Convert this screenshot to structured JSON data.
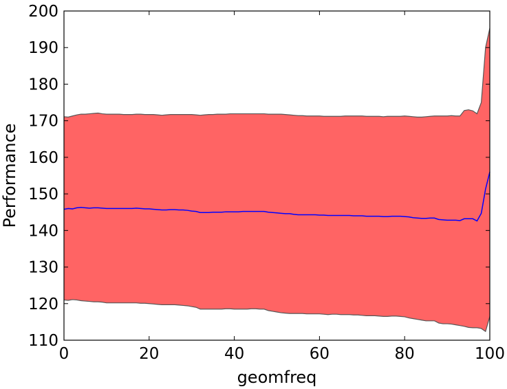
{
  "chart_data": {
    "type": "area",
    "title": "",
    "xlabel": "geomfreq",
    "ylabel": "Performance",
    "xlim": [
      0,
      100
    ],
    "ylim": [
      110,
      200
    ],
    "xticks": [
      0,
      20,
      40,
      60,
      80,
      100
    ],
    "yticks": [
      110,
      120,
      130,
      140,
      150,
      160,
      170,
      180,
      190,
      200
    ],
    "grid": false,
    "colors": {
      "band_fill": "#ff6464",
      "band_edge": "#555555",
      "mean_line": "#0000ff",
      "axes": "#000000"
    },
    "x": [
      0,
      1,
      2,
      3,
      4,
      5,
      6,
      7,
      8,
      9,
      10,
      11,
      12,
      13,
      14,
      15,
      16,
      17,
      18,
      19,
      20,
      21,
      22,
      23,
      24,
      25,
      26,
      27,
      28,
      29,
      30,
      31,
      32,
      33,
      34,
      35,
      36,
      37,
      38,
      39,
      40,
      41,
      42,
      43,
      44,
      45,
      46,
      47,
      48,
      49,
      50,
      51,
      52,
      53,
      54,
      55,
      56,
      57,
      58,
      59,
      60,
      61,
      62,
      63,
      64,
      65,
      66,
      67,
      68,
      69,
      70,
      71,
      72,
      73,
      74,
      75,
      76,
      77,
      78,
      79,
      80,
      81,
      82,
      83,
      84,
      85,
      86,
      87,
      88,
      89,
      90,
      91,
      92,
      93,
      94,
      95,
      96,
      97,
      98,
      99,
      100
    ],
    "series": [
      {
        "role": "mean",
        "values": [
          145.8,
          146.0,
          145.9,
          146.2,
          146.3,
          146.2,
          146.1,
          146.2,
          146.2,
          146.1,
          146.0,
          146.0,
          146.0,
          146.0,
          146.0,
          146.0,
          146.0,
          146.1,
          146.0,
          145.9,
          145.9,
          145.8,
          145.7,
          145.6,
          145.6,
          145.7,
          145.7,
          145.6,
          145.6,
          145.5,
          145.3,
          145.2,
          144.9,
          144.9,
          144.9,
          145.0,
          145.0,
          145.0,
          145.1,
          145.1,
          145.1,
          145.1,
          145.2,
          145.2,
          145.2,
          145.2,
          145.2,
          145.2,
          145.0,
          144.9,
          144.8,
          144.7,
          144.6,
          144.6,
          144.4,
          144.3,
          144.3,
          144.3,
          144.3,
          144.3,
          144.2,
          144.2,
          144.1,
          144.1,
          144.1,
          144.1,
          144.1,
          144.1,
          144.0,
          144.0,
          144.0,
          143.9,
          143.9,
          143.9,
          143.9,
          143.8,
          143.8,
          143.9,
          143.9,
          143.9,
          143.8,
          143.7,
          143.5,
          143.4,
          143.3,
          143.3,
          143.4,
          143.4,
          143.0,
          142.9,
          142.8,
          142.8,
          142.8,
          142.7,
          143.2,
          143.2,
          143.2,
          142.6,
          144.7,
          151.3,
          156.0
        ]
      },
      {
        "role": "upper",
        "values": [
          171.1,
          171.0,
          171.3,
          171.6,
          171.8,
          171.8,
          171.9,
          172.0,
          172.1,
          171.9,
          171.8,
          171.8,
          171.8,
          171.8,
          171.7,
          171.7,
          171.7,
          171.8,
          171.8,
          171.7,
          171.7,
          171.7,
          171.6,
          171.5,
          171.6,
          171.7,
          171.7,
          171.7,
          171.7,
          171.7,
          171.7,
          171.6,
          171.5,
          171.6,
          171.7,
          171.7,
          171.8,
          171.8,
          171.8,
          171.9,
          171.9,
          171.9,
          171.9,
          171.9,
          171.9,
          171.9,
          171.9,
          171.9,
          171.8,
          171.8,
          171.8,
          171.8,
          171.7,
          171.6,
          171.5,
          171.4,
          171.4,
          171.3,
          171.3,
          171.3,
          171.3,
          171.2,
          171.2,
          171.2,
          171.2,
          171.2,
          171.3,
          171.3,
          171.3,
          171.3,
          171.3,
          171.2,
          171.2,
          171.2,
          171.2,
          171.1,
          171.2,
          171.2,
          171.2,
          171.2,
          171.3,
          171.2,
          171.1,
          171.0,
          171.0,
          171.1,
          171.2,
          171.3,
          171.3,
          171.3,
          171.3,
          171.4,
          171.3,
          171.3,
          172.8,
          173.0,
          172.7,
          171.9,
          175.0,
          190.0,
          195.3
        ]
      },
      {
        "role": "lower",
        "values": [
          121.0,
          120.9,
          121.1,
          121.0,
          120.8,
          120.7,
          120.6,
          120.5,
          120.5,
          120.4,
          120.2,
          120.2,
          120.2,
          120.2,
          120.2,
          120.2,
          120.2,
          120.2,
          120.1,
          120.1,
          120.0,
          119.9,
          119.8,
          119.7,
          119.7,
          119.7,
          119.7,
          119.6,
          119.5,
          119.4,
          119.2,
          119.0,
          118.5,
          118.5,
          118.5,
          118.5,
          118.5,
          118.5,
          118.6,
          118.6,
          118.5,
          118.5,
          118.5,
          118.5,
          118.6,
          118.6,
          118.5,
          118.5,
          118.1,
          117.9,
          117.7,
          117.5,
          117.4,
          117.3,
          117.3,
          117.3,
          117.3,
          117.2,
          117.2,
          117.2,
          117.2,
          117.1,
          117.0,
          117.1,
          117.1,
          117.0,
          117.0,
          117.0,
          116.9,
          116.9,
          116.8,
          116.7,
          116.7,
          116.7,
          116.6,
          116.5,
          116.5,
          116.6,
          116.6,
          116.5,
          116.4,
          116.1,
          115.9,
          115.7,
          115.5,
          115.3,
          115.3,
          115.3,
          114.7,
          114.5,
          114.5,
          114.4,
          114.2,
          114.0,
          113.8,
          113.5,
          113.4,
          113.4,
          113.2,
          112.4,
          116.5
        ]
      }
    ]
  }
}
